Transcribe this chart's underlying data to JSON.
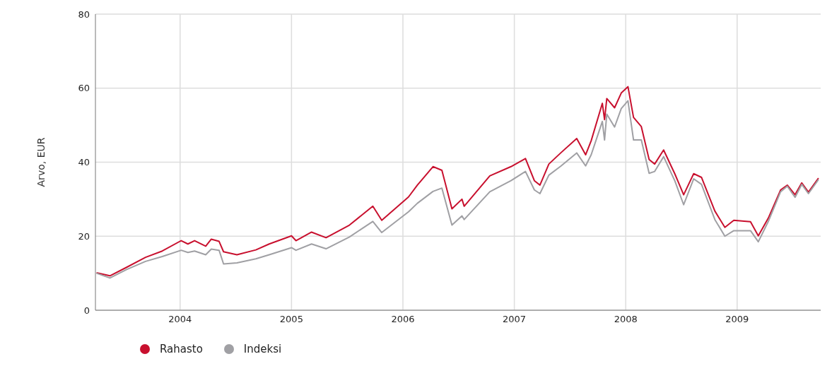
{
  "chart_data": {
    "type": "line",
    "ylabel": "Arvo,  EUR",
    "x": [
      2003.25,
      2003.37,
      2003.52,
      2003.69,
      2003.84,
      2004.01,
      2004.07,
      2004.13,
      2004.23,
      2004.28,
      2004.35,
      2004.39,
      2004.51,
      2004.68,
      2004.8,
      2005.0,
      2005.04,
      2005.18,
      2005.31,
      2005.52,
      2005.73,
      2005.81,
      2006.05,
      2006.13,
      2006.27,
      2006.35,
      2006.44,
      2006.53,
      2006.55,
      2006.78,
      2006.97,
      2007.1,
      2007.18,
      2007.23,
      2007.31,
      2007.42,
      2007.56,
      2007.64,
      2007.69,
      2007.79,
      2007.81,
      2007.83,
      2007.9,
      2007.96,
      2008.02,
      2008.07,
      2008.14,
      2008.21,
      2008.26,
      2008.34,
      2008.44,
      2008.52,
      2008.61,
      2008.68,
      2008.8,
      2008.89,
      2008.97,
      2009.12,
      2009.19,
      2009.28,
      2009.39,
      2009.45,
      2009.52,
      2009.58,
      2009.64,
      2009.73
    ],
    "series": [
      {
        "name": "Rahasto",
        "color": "#c8102e",
        "values": [
          10.1,
          9.3,
          11.6,
          14.3,
          16.0,
          18.8,
          17.9,
          18.8,
          17.3,
          19.2,
          18.6,
          15.8,
          15.0,
          16.3,
          17.9,
          20.1,
          18.8,
          21.1,
          19.6,
          23.0,
          28.1,
          24.3,
          30.6,
          33.8,
          38.8,
          37.8,
          27.4,
          30.0,
          28.1,
          36.3,
          38.8,
          41.0,
          35.0,
          33.8,
          39.5,
          42.6,
          46.4,
          42.0,
          45.8,
          55.9,
          51.5,
          57.2,
          54.7,
          58.7,
          60.4,
          52.1,
          49.6,
          40.7,
          39.5,
          43.3,
          36.9,
          31.2,
          36.9,
          35.9,
          26.8,
          22.4,
          24.3,
          23.9,
          20.1,
          24.9,
          32.5,
          33.8,
          31.2,
          34.4,
          31.9,
          35.7
        ]
      },
      {
        "name": "Indeksi",
        "color": "#a0a0a4",
        "values": [
          10.0,
          8.7,
          11.0,
          13.2,
          14.5,
          16.2,
          15.6,
          16.0,
          15.0,
          16.5,
          16.2,
          12.5,
          12.8,
          13.9,
          15.0,
          16.9,
          16.2,
          17.9,
          16.6,
          19.8,
          24.0,
          21.0,
          26.6,
          28.9,
          32.1,
          33.0,
          23.0,
          25.5,
          24.5,
          32.0,
          35.0,
          37.5,
          32.5,
          31.5,
          36.5,
          39.0,
          42.5,
          39.0,
          42.0,
          51.0,
          46.0,
          53.0,
          49.5,
          54.5,
          56.6,
          46.0,
          46.0,
          37.0,
          37.5,
          41.5,
          35.0,
          28.5,
          35.5,
          34.0,
          24.5,
          20.0,
          21.5,
          21.5,
          18.5,
          24.0,
          32.0,
          33.5,
          30.5,
          34.0,
          31.5,
          35.3
        ]
      }
    ],
    "xlim": [
      2003.24,
      2009.75
    ],
    "xticks": [
      2004,
      2005,
      2006,
      2007,
      2008,
      2009
    ],
    "ylim": [
      0,
      80
    ],
    "yticks": [
      0,
      20,
      40,
      60,
      80
    ],
    "grid": true,
    "legend": "bottom left"
  }
}
